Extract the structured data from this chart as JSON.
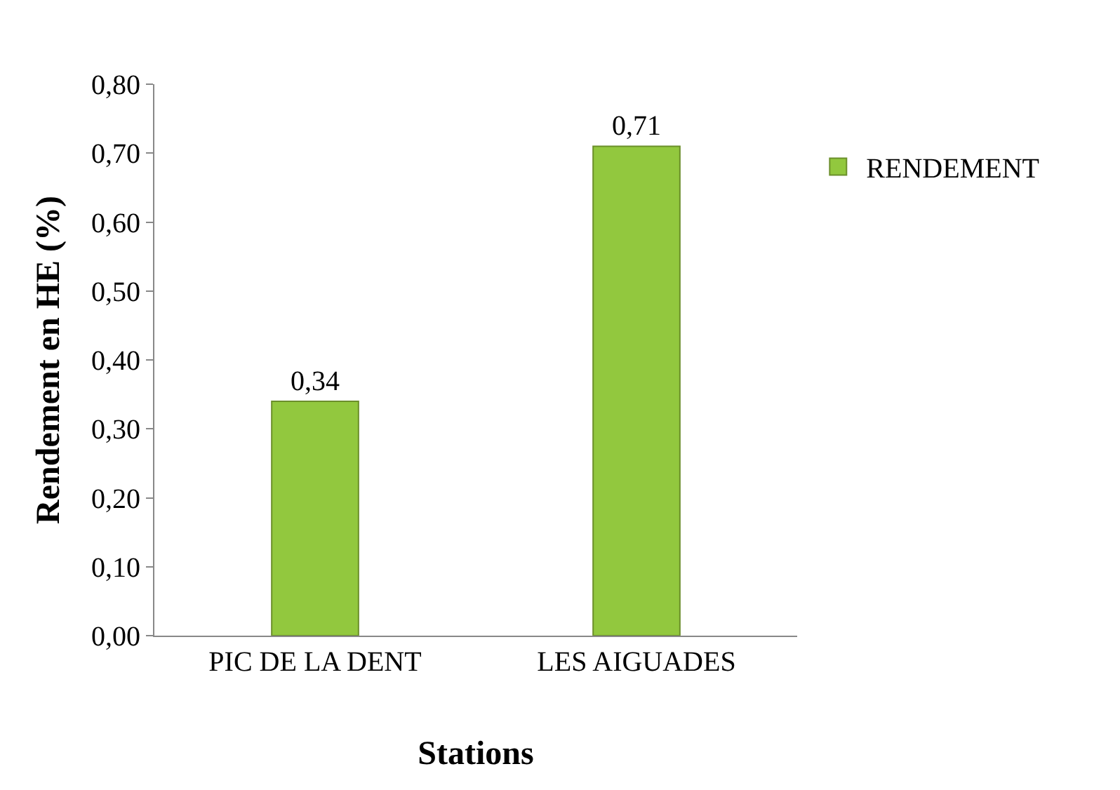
{
  "chart_data": {
    "type": "bar",
    "xlabel": "Stations",
    "ylabel": "Rendement en HE (%)",
    "categories": [
      "PIC DE LA DENT",
      "LES AIGUADES"
    ],
    "series": [
      {
        "name": "RENDEMENT",
        "color": "#92c83e",
        "values": [
          0.34,
          0.71
        ],
        "value_labels": [
          "0,34",
          "0,71"
        ]
      }
    ],
    "ylim": [
      0,
      0.8
    ],
    "yticks": [
      {
        "value": 0,
        "label": "0,00"
      },
      {
        "value": 0.1,
        "label": "0,10"
      },
      {
        "value": 0.2,
        "label": "0,20"
      },
      {
        "value": 0.3,
        "label": "0,30"
      },
      {
        "value": 0.4,
        "label": "0,40"
      },
      {
        "value": 0.5,
        "label": "0,50"
      },
      {
        "value": 0.6,
        "label": "0,60"
      },
      {
        "value": 0.7,
        "label": "0,70"
      },
      {
        "value": 0.8,
        "label": "0,80"
      }
    ],
    "legend": "top right"
  }
}
